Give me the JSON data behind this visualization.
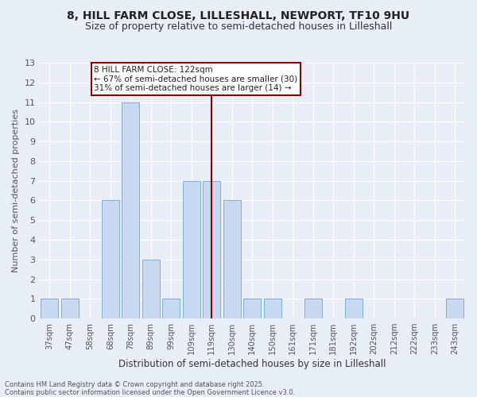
{
  "title_line1": "8, HILL FARM CLOSE, LILLESHALL, NEWPORT, TF10 9HU",
  "title_line2": "Size of property relative to semi-detached houses in Lilleshall",
  "xlabel": "Distribution of semi-detached houses by size in Lilleshall",
  "ylabel": "Number of semi-detached properties",
  "categories": [
    "37sqm",
    "47sqm",
    "58sqm",
    "68sqm",
    "78sqm",
    "89sqm",
    "99sqm",
    "109sqm",
    "119sqm",
    "130sqm",
    "140sqm",
    "150sqm",
    "161sqm",
    "171sqm",
    "181sqm",
    "192sqm",
    "202sqm",
    "212sqm",
    "222sqm",
    "233sqm",
    "243sqm"
  ],
  "values": [
    1,
    1,
    0,
    6,
    11,
    3,
    1,
    7,
    7,
    6,
    1,
    1,
    0,
    1,
    0,
    1,
    0,
    0,
    0,
    0,
    1
  ],
  "bar_color": "#c8d8f0",
  "bar_edge_color": "#7ab0d8",
  "vline_x_index": 8,
  "vline_color": "#8b0000",
  "annotation_text": "8 HILL FARM CLOSE: 122sqm\n← 67% of semi-detached houses are smaller (30)\n31% of semi-detached houses are larger (14) →",
  "annotation_box_color": "#ffffff",
  "annotation_box_edge_color": "#8b0000",
  "bg_color": "#e8eef8",
  "grid_color": "#ffffff",
  "footer_text": "Contains HM Land Registry data © Crown copyright and database right 2025.\nContains public sector information licensed under the Open Government Licence v3.0.",
  "ylim": [
    0,
    13
  ],
  "title_fontsize": 10,
  "subtitle_fontsize": 9
}
